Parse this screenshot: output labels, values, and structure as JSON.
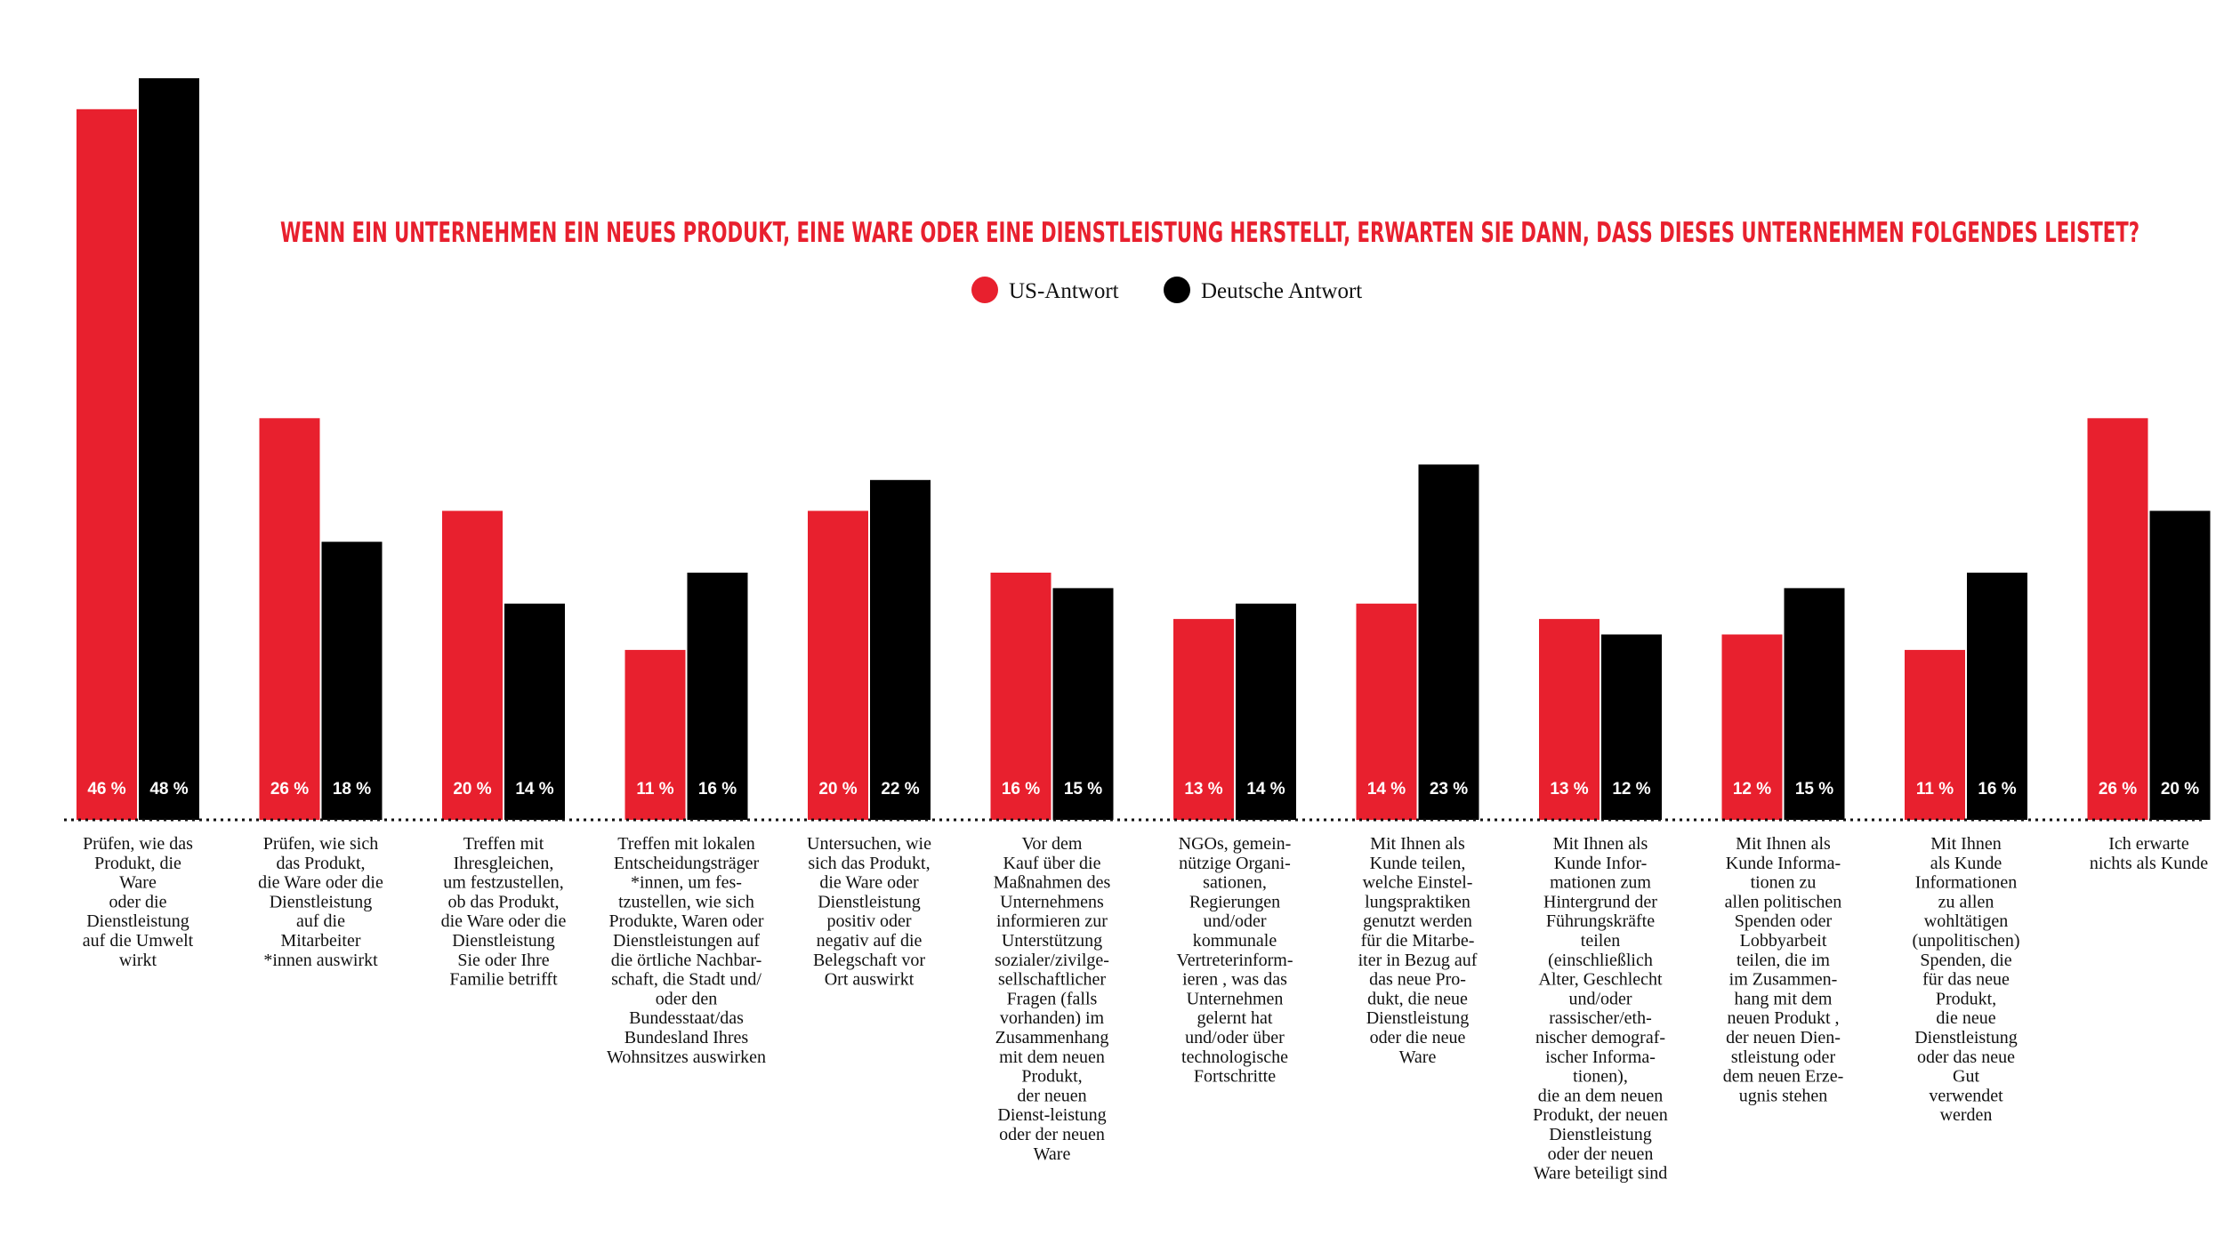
{
  "chart_data": {
    "type": "bar",
    "title": "WENN EIN UNTERNEHMEN EIN NEUES PRODUKT, EINE WARE ODER EINE DIENSTLEISTUNG HERSTELLT, ERWARTEN SIE DANN, DASS DIESES UNTERNEHMEN FOLGENDES LEISTET?",
    "ylim": [
      0,
      48
    ],
    "legend_position": "top-center",
    "series": [
      {
        "name": "US-Antwort",
        "color": "#e8202e",
        "values": [
          46,
          26,
          20,
          11,
          20,
          16,
          13,
          14,
          13,
          12,
          11,
          26
        ],
        "labels": [
          "46 %",
          "26 %",
          "20 %",
          "11 %",
          "20 %",
          "16 %",
          "13 %",
          "14 %",
          "13 %",
          "12 %",
          "11 %",
          "26 %"
        ]
      },
      {
        "name": "Deutsche Antwort",
        "color": "#000000",
        "values": [
          48,
          18,
          14,
          16,
          22,
          15,
          14,
          23,
          12,
          15,
          16,
          20
        ],
        "labels": [
          "48 %",
          "18 %",
          "14 %",
          "16 %",
          "22 %",
          "15 %",
          "14 %",
          "23 %",
          "12 %",
          "15 %",
          "16 %",
          "20 %"
        ]
      }
    ],
    "categories": [
      [
        "Prüfen, wie das",
        "Produkt, die",
        "Ware",
        "oder die",
        "Dienstleistung",
        "auf  die Umwelt",
        "wirkt"
      ],
      [
        "Prüfen, wie sich",
        "das Produkt,",
        "die Ware oder die",
        "Dienstleistung",
        "auf die",
        "Mitarbeiter",
        "*innen auswirkt"
      ],
      [
        "Treffen mit",
        "Ihresgleichen,",
        "um festzustellen,",
        "ob das Produkt,",
        "die Ware oder die",
        "Dienstleistung",
        "Sie oder Ihre",
        "Familie betrifft"
      ],
      [
        "Treffen mit lokalen",
        "Entscheidungsträger",
        "*innen, um fes-",
        "tzustellen, wie sich",
        "Produkte, Waren oder",
        "Dienstleistungen auf",
        "die örtliche Nachbar-",
        "schaft, die Stadt und/",
        "oder den",
        "Bundesstaat/das",
        "Bundesland Ihres",
        "Wohnsitzes auswirken"
      ],
      [
        "Untersuchen, wie",
        "sich das Produkt,",
        "die Ware oder",
        "Dienstleistung",
        "positiv oder",
        "negativ auf  die",
        "Belegschaft vor",
        "Ort auswirkt"
      ],
      [
        "Vor dem",
        "Kauf  über die",
        "Maßnahmen des",
        "Unternehmens",
        "informieren zur",
        "Unterstützung",
        "sozialer/zivilge-",
        "sellschaftlicher",
        "Fragen (falls",
        "vorhanden) im",
        "Zusammenhang",
        "mit dem neuen",
        "Produkt,",
        "der neuen",
        "Dienst-leistung",
        "oder der neuen",
        "Ware"
      ],
      [
        "NGOs, gemein-",
        "nützige Organi-",
        "sationen,",
        "Regierungen",
        "und/oder",
        "kommunale",
        "Vertreterinform-",
        "ieren , was das",
        "Unternehmen",
        "gelernt hat",
        "und/oder über",
        "technologische",
        "Fortschritte"
      ],
      [
        "Mit Ihnen als",
        "Kunde teilen,",
        "welche Einstel-",
        "lungspraktiken",
        "genutzt werden",
        "für die Mitarbe-",
        "iter in Bezug auf",
        "das neue Pro-",
        "dukt, die neue",
        "Dienstleistung",
        "oder die neue",
        "Ware"
      ],
      [
        "Mit Ihnen als",
        "Kunde Infor-",
        "mationen zum",
        "Hintergrund der",
        "Führungskräfte",
        "teilen",
        "(einschließlich",
        "Alter, Geschlecht",
        "und/oder",
        "rassischer/eth-",
        "nischer demograf-",
        "ischer Informa-",
        "tionen),",
        "die an dem neuen",
        "Produkt, der neuen",
        "Dienstleistung",
        "oder der neuen",
        "Ware beteiligt sind"
      ],
      [
        "Mit Ihnen als",
        "Kunde Informa-",
        "tionen zu",
        "allen politischen",
        "Spenden oder",
        "Lobbyarbeit",
        "teilen, die im",
        "im Zusammen-",
        "hang mit dem",
        "neuen Produkt ,",
        "der neuen Dien-",
        "stleistung oder",
        "dem neuen Erze-",
        "ugnis stehen"
      ],
      [
        "Mit Ihnen",
        "als Kunde",
        "Informationen",
        "zu allen",
        "wohltätigen",
        "(unpolitischen)",
        "Spenden, die",
        "für das neue",
        "Produkt,",
        "die neue",
        "Dienstleistung",
        "oder das neue",
        "Gut",
        "verwendet",
        "werden"
      ],
      [
        "Ich erwarte",
        "nichts als Kunde"
      ]
    ]
  }
}
